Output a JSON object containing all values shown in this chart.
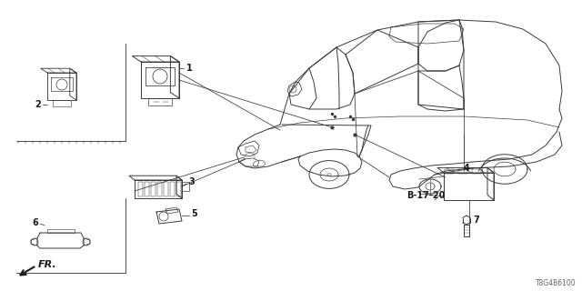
{
  "background_color": "#ffffff",
  "label_b1720": "B-17-20",
  "label_fr": "FR.",
  "catalog_number": "T8G4B6100",
  "fig_width": 6.4,
  "fig_height": 3.2,
  "dpi": 100,
  "line_color": "#3a3a3a",
  "text_color": "#1a1a1a"
}
